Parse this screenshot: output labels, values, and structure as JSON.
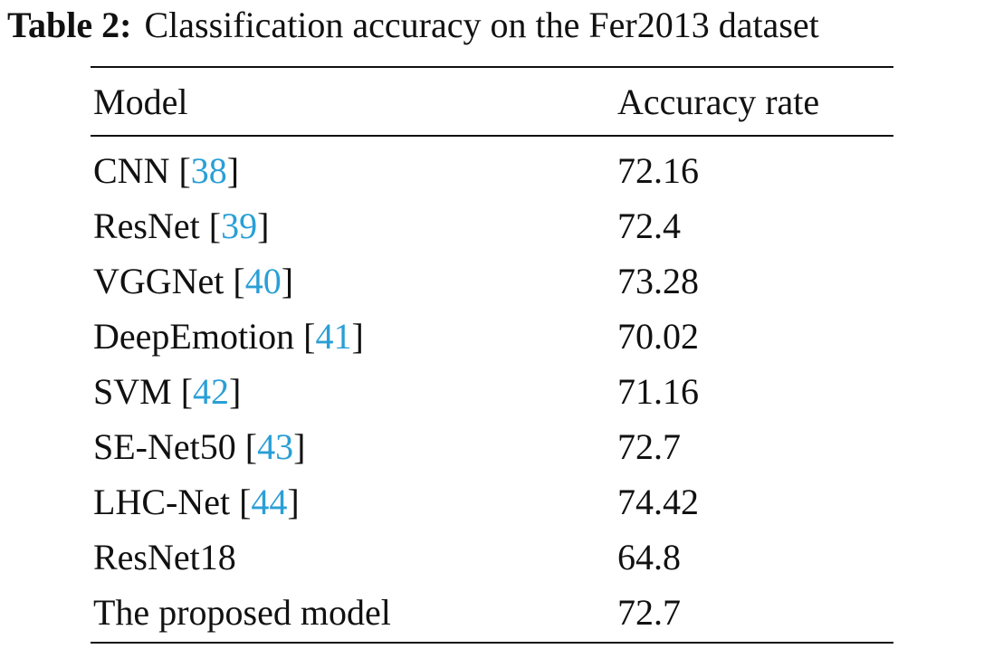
{
  "caption": {
    "label": "Table 2:",
    "text": "Classification accuracy on the Fer2013 dataset"
  },
  "table": {
    "headers": [
      "Model",
      "Accuracy rate"
    ],
    "rows": [
      {
        "model": "CNN",
        "ref": "38",
        "accuracy": "72.16"
      },
      {
        "model": "ResNet",
        "ref": "39",
        "accuracy": "72.4"
      },
      {
        "model": "VGGNet",
        "ref": "40",
        "accuracy": "73.28"
      },
      {
        "model": "DeepEmotion",
        "ref": "41",
        "accuracy": "70.02"
      },
      {
        "model": "SVM",
        "ref": "42",
        "accuracy": "71.16"
      },
      {
        "model": "SE-Net50",
        "ref": "43",
        "accuracy": "72.7"
      },
      {
        "model": "LHC-Net",
        "ref": "44",
        "accuracy": "74.42"
      },
      {
        "model": "ResNet18",
        "ref": "",
        "accuracy": "64.8"
      },
      {
        "model": "The proposed model",
        "ref": "",
        "accuracy": "72.7"
      }
    ]
  },
  "colors": {
    "text": "#111111",
    "citation_link": "#2a9fd6"
  }
}
